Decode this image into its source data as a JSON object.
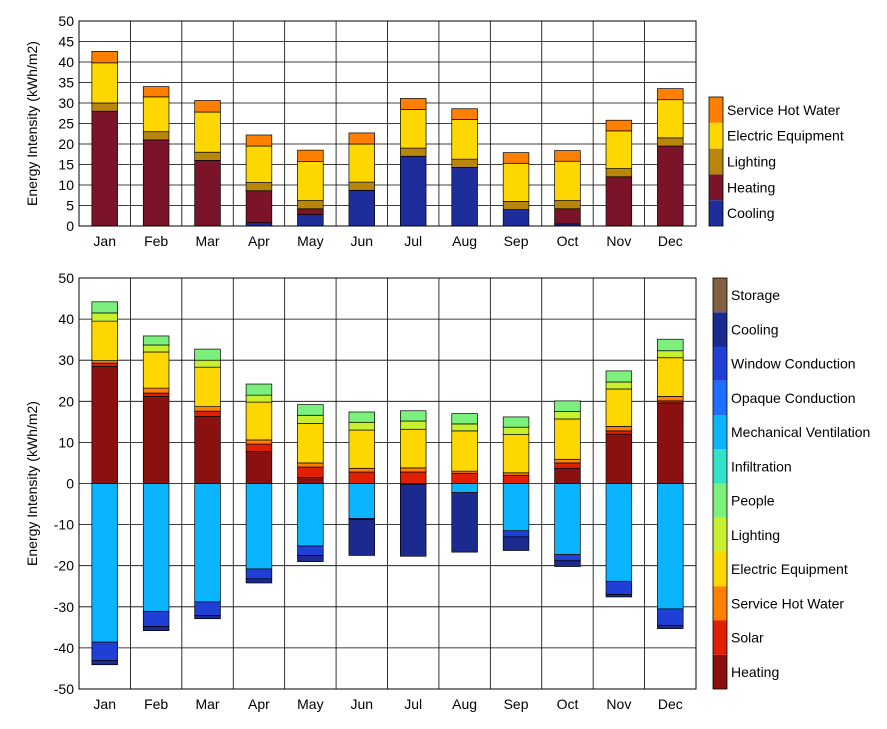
{
  "chart_data": [
    {
      "type": "bar",
      "stacked": true,
      "categories": [
        "Jan",
        "Feb",
        "Mar",
        "Apr",
        "May",
        "Jun",
        "Jul",
        "Aug",
        "Sep",
        "Oct",
        "Nov",
        "Dec"
      ],
      "ylabel": "Energy Intensity (kWh/m2)",
      "ylim": [
        0,
        50
      ],
      "yticks": [
        0,
        5,
        10,
        15,
        20,
        25,
        30,
        35,
        40,
        45,
        50
      ],
      "grid": true,
      "legend_position": "right",
      "series": [
        {
          "name": "Cooling",
          "color": "#1e2d9c",
          "values": [
            0,
            0,
            0,
            0.8,
            2.8,
            8.7,
            17,
            14.3,
            4,
            0.5,
            0,
            0
          ]
        },
        {
          "name": "Heating",
          "color": "#7b1428",
          "values": [
            28,
            21,
            16,
            7.8,
            1.4,
            0,
            0,
            0,
            0,
            3.7,
            12,
            19.5
          ]
        },
        {
          "name": "Lighting",
          "color": "#b8860b",
          "values": [
            2,
            2,
            2,
            2,
            2,
            2,
            2,
            2,
            2,
            2,
            2,
            2
          ]
        },
        {
          "name": "Electric Equipment",
          "color": "#ffd700",
          "values": [
            9.8,
            8.5,
            9.8,
            8.9,
            9.5,
            9.3,
            9.4,
            9.7,
            9.3,
            9.6,
            9.2,
            9.3
          ]
        },
        {
          "name": "Service Hot Water",
          "color": "#ff7f00",
          "values": [
            2.8,
            2.5,
            2.8,
            2.7,
            2.8,
            2.7,
            2.7,
            2.6,
            2.6,
            2.6,
            2.6,
            2.7
          ]
        }
      ]
    },
    {
      "type": "bar",
      "stacked": true,
      "categories": [
        "Jan",
        "Feb",
        "Mar",
        "Apr",
        "May",
        "Jun",
        "Jul",
        "Aug",
        "Sep",
        "Oct",
        "Nov",
        "Dec"
      ],
      "ylabel": "Energy Intensity (kWh/m2)",
      "ylim": [
        -50,
        50
      ],
      "yticks": [
        -50,
        -40,
        -30,
        -20,
        -10,
        0,
        10,
        20,
        30,
        40,
        50
      ],
      "grid": true,
      "legend_position": "right",
      "legend": [
        "Storage",
        "Cooling",
        "Window Conduction",
        "Opaque Conduction",
        "Mechanical Ventilation",
        "Infiltration",
        "People",
        "Lighting",
        "Electric Equipment",
        "Service Hot Water",
        "Solar",
        "Heating"
      ],
      "legend_colors": [
        "#806040",
        "#1b2a8f",
        "#1f3fd6",
        "#1f6fff",
        "#0ab4ff",
        "#33e0c8",
        "#7cf07c",
        "#c8f030",
        "#ffd700",
        "#ff7f00",
        "#e02000",
        "#8b1010"
      ],
      "series": [
        {
          "name": "Heating",
          "color": "#8b1010",
          "values": [
            28.5,
            21.2,
            16.3,
            7.8,
            1.5,
            0,
            0,
            0,
            0,
            3.7,
            12,
            19.6
          ]
        },
        {
          "name": "Solar",
          "color": "#e02000",
          "values": [
            0.8,
            0.8,
            1.3,
            1.8,
            2.5,
            2.8,
            2.8,
            2.5,
            2,
            1.3,
            0.8,
            0.5
          ]
        },
        {
          "name": "Service Hot Water",
          "color": "#ff7f00",
          "values": [
            0.6,
            1.2,
            1.1,
            1,
            1,
            0.9,
            1,
            0.5,
            0.6,
            0.9,
            1.1,
            1.1
          ]
        },
        {
          "name": "Electric Equipment",
          "color": "#ffd700",
          "values": [
            9.6,
            8.8,
            9.6,
            9.2,
            9.6,
            9.3,
            9.4,
            9.8,
            9.3,
            9.8,
            9.1,
            9.4
          ]
        },
        {
          "name": "Lighting",
          "color": "#c8f030",
          "values": [
            2,
            1.7,
            1.7,
            1.7,
            2,
            1.9,
            2,
            1.7,
            1.8,
            1.8,
            1.7,
            1.7
          ]
        },
        {
          "name": "People",
          "color": "#7cf07c",
          "values": [
            2.7,
            2.2,
            2.7,
            2.7,
            2.6,
            2.5,
            2.5,
            2.5,
            2.5,
            2.6,
            2.7,
            2.8
          ]
        },
        {
          "name": "Mechanical Ventilation",
          "color": "#0ab4ff",
          "values": [
            -38.6,
            -31.1,
            -28.8,
            -20.8,
            -15.2,
            -8.5,
            -0.2,
            -2.2,
            -11.5,
            -17.3,
            -23.8,
            -30.5
          ]
        },
        {
          "name": "Window Conduction",
          "color": "#1f3fd6",
          "values": [
            -4.5,
            -3.7,
            -3.3,
            -2.4,
            -2.3,
            -0.3,
            0,
            0,
            -1.5,
            -1.5,
            -3.2,
            -4
          ]
        },
        {
          "name": "Cooling",
          "color": "#1b2a8f",
          "values": [
            -1,
            -1,
            -0.8,
            -1,
            -1.5,
            -8.7,
            -17.5,
            -14.5,
            -3.3,
            -1.4,
            -0.6,
            -0.8
          ]
        }
      ]
    }
  ]
}
